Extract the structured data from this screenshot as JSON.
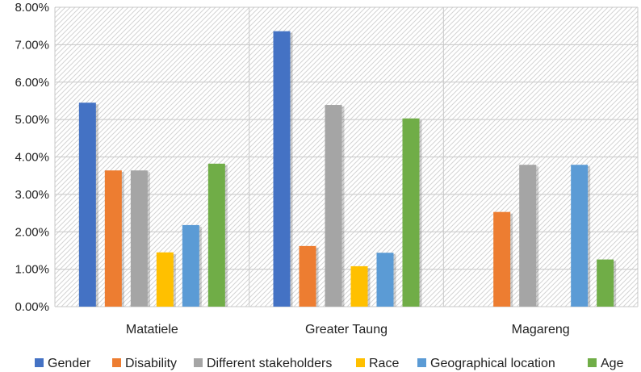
{
  "chart_data": {
    "type": "bar",
    "categories": [
      "Matatiele",
      "Greater Taung",
      "Magareng"
    ],
    "series": [
      {
        "name": "Gender",
        "color": "#4472C4",
        "values": [
          5.45,
          7.36,
          0
        ]
      },
      {
        "name": "Disability",
        "color": "#ED7D31",
        "values": [
          3.64,
          1.62,
          2.53
        ]
      },
      {
        "name": "Different stakeholders",
        "color": "#A5A5A5",
        "values": [
          3.64,
          5.39,
          3.79
        ]
      },
      {
        "name": "Race",
        "color": "#FFC000",
        "values": [
          1.45,
          1.08,
          0
        ]
      },
      {
        "name": "Geographical location",
        "color": "#5B9BD5",
        "values": [
          2.18,
          1.44,
          3.79
        ]
      },
      {
        "name": "Age",
        "color": "#70AD47",
        "values": [
          3.82,
          5.03,
          1.26
        ]
      }
    ],
    "yticks": [
      "0.00%",
      "1.00%",
      "2.00%",
      "3.00%",
      "4.00%",
      "5.00%",
      "6.00%",
      "7.00%",
      "8.00%"
    ],
    "ylim": [
      0,
      8
    ],
    "grid": true,
    "legend_position": "bottom",
    "title": "",
    "xlabel": "",
    "ylabel": ""
  }
}
